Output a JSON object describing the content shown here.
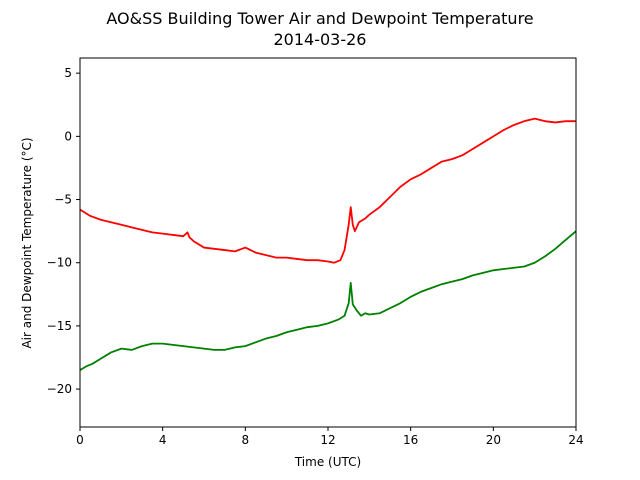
{
  "chart_data": {
    "type": "line",
    "title": "AO&SS Building Tower Air and Dewpoint Temperature",
    "subtitle": "2014-03-26",
    "xlabel": "Time (UTC)",
    "ylabel": "Air and Dewpoint Temperature (°C)",
    "xlim": [
      0,
      24
    ],
    "ylim": [
      -23,
      6.2
    ],
    "xticks": [
      0,
      4,
      8,
      12,
      16,
      20,
      24
    ],
    "yticks": [
      -20,
      -15,
      -10,
      -5,
      0,
      5
    ],
    "grid": false,
    "legend": "none",
    "series": [
      {
        "color": "#ff0000",
        "x": [
          0,
          0.5,
          1,
          1.5,
          2,
          2.5,
          3,
          3.5,
          4,
          4.5,
          5,
          5.2,
          5.3,
          5.5,
          6,
          6.5,
          7,
          7.5,
          8,
          8.5,
          9,
          9.5,
          10,
          10.5,
          11,
          11.5,
          12,
          12.3,
          12.6,
          12.8,
          13,
          13.1,
          13.2,
          13.3,
          13.5,
          13.8,
          14,
          14.5,
          15,
          15.5,
          16,
          16.5,
          17,
          17.5,
          18,
          18.5,
          19,
          19.5,
          20,
          20.5,
          21,
          21.5,
          22,
          22.5,
          23,
          23.5,
          24
        ],
        "y": [
          -5.8,
          -6.3,
          -6.6,
          -6.8,
          -7.0,
          -7.2,
          -7.4,
          -7.6,
          -7.7,
          -7.8,
          -7.9,
          -7.6,
          -8.0,
          -8.3,
          -8.8,
          -8.9,
          -9.0,
          -9.1,
          -8.8,
          -9.2,
          -9.4,
          -9.6,
          -9.6,
          -9.7,
          -9.8,
          -9.8,
          -9.9,
          -10.0,
          -9.8,
          -9.0,
          -7.0,
          -5.6,
          -7.0,
          -7.5,
          -6.8,
          -6.5,
          -6.2,
          -5.6,
          -4.8,
          -4.0,
          -3.4,
          -3.0,
          -2.5,
          -2.0,
          -1.8,
          -1.5,
          -1.0,
          -0.5,
          0.0,
          0.5,
          0.9,
          1.2,
          1.4,
          1.2,
          1.1,
          1.2,
          1.2
        ]
      },
      {
        "color": "#008000",
        "x": [
          0,
          0.3,
          0.6,
          1,
          1.5,
          2,
          2.5,
          3,
          3.5,
          4,
          4.5,
          5,
          5.5,
          6,
          6.5,
          7,
          7.5,
          8,
          8.5,
          9,
          9.5,
          10,
          10.5,
          11,
          11.5,
          12,
          12.5,
          12.8,
          13,
          13.1,
          13.2,
          13.4,
          13.6,
          13.8,
          14,
          14.5,
          15,
          15.5,
          16,
          16.5,
          17,
          17.5,
          18,
          18.5,
          19,
          19.5,
          20,
          20.5,
          21,
          21.5,
          22,
          22.5,
          23,
          23.5,
          24
        ],
        "y": [
          -18.5,
          -18.2,
          -18.0,
          -17.6,
          -17.1,
          -16.8,
          -16.9,
          -16.6,
          -16.4,
          -16.4,
          -16.5,
          -16.6,
          -16.7,
          -16.8,
          -16.9,
          -16.9,
          -16.7,
          -16.6,
          -16.3,
          -16.0,
          -15.8,
          -15.5,
          -15.3,
          -15.1,
          -15.0,
          -14.8,
          -14.5,
          -14.2,
          -13.2,
          -11.6,
          -13.3,
          -13.8,
          -14.2,
          -14.0,
          -14.1,
          -14.0,
          -13.6,
          -13.2,
          -12.7,
          -12.3,
          -12.0,
          -11.7,
          -11.5,
          -11.3,
          -11.0,
          -10.8,
          -10.6,
          -10.5,
          -10.4,
          -10.3,
          -10.0,
          -9.5,
          -8.9,
          -8.2,
          -7.5
        ]
      }
    ]
  }
}
